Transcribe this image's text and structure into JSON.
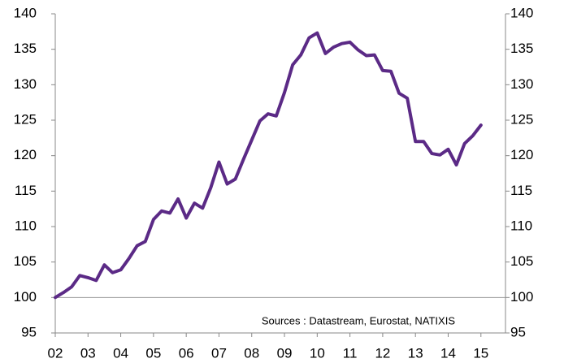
{
  "chart_data": {
    "type": "line",
    "annotation": "Sources : Datastream, Eurostat, NATIXIS",
    "x": [
      2002,
      2002.25,
      2002.5,
      2002.75,
      2003,
      2003.25,
      2003.5,
      2003.75,
      2004,
      2004.25,
      2004.5,
      2004.75,
      2005,
      2005.25,
      2005.5,
      2005.75,
      2006,
      2006.25,
      2006.5,
      2006.75,
      2007,
      2007.25,
      2007.5,
      2007.75,
      2008,
      2008.25,
      2008.5,
      2008.75,
      2009,
      2009.25,
      2009.5,
      2009.75,
      2010,
      2010.25,
      2010.5,
      2010.75,
      2011,
      2011.25,
      2011.5,
      2011.75,
      2012,
      2012.25,
      2012.5,
      2012.75,
      2013,
      2013.25,
      2013.5,
      2013.75,
      2014,
      2014.25,
      2014.5,
      2014.75,
      2015
    ],
    "series": [
      {
        "color": "#5b2a86",
        "values": [
          100,
          100.7,
          101.5,
          103.1,
          102.8,
          102.4,
          104.6,
          103.5,
          103.9,
          105.5,
          107.3,
          107.9,
          111.0,
          112.2,
          111.9,
          113.9,
          111.2,
          113.3,
          112.6,
          115.5,
          119.1,
          116.0,
          116.7,
          119.5,
          122.2,
          124.9,
          125.9,
          125.6,
          128.9,
          132.8,
          134.2,
          136.6,
          137.3,
          134.4,
          135.3,
          135.8,
          136.0,
          134.9,
          134.1,
          134.2,
          132.0,
          131.9,
          128.8,
          128.1,
          122.0,
          122.0,
          120.3,
          120.1,
          120.9,
          118.7,
          121.7,
          122.8,
          124.3
        ]
      }
    ],
    "xlim": [
      2002,
      2015.75
    ],
    "xticks": [
      {
        "value": 2002,
        "label": "02"
      },
      {
        "value": 2003,
        "label": "03"
      },
      {
        "value": 2004,
        "label": "04"
      },
      {
        "value": 2005,
        "label": "05"
      },
      {
        "value": 2006,
        "label": "06"
      },
      {
        "value": 2007,
        "label": "07"
      },
      {
        "value": 2008,
        "label": "08"
      },
      {
        "value": 2009,
        "label": "09"
      },
      {
        "value": 2010,
        "label": "10"
      },
      {
        "value": 2011,
        "label": "11"
      },
      {
        "value": 2012,
        "label": "12"
      },
      {
        "value": 2013,
        "label": "13"
      },
      {
        "value": 2014,
        "label": "14"
      },
      {
        "value": 2015,
        "label": "15"
      }
    ],
    "ylim": [
      95,
      140
    ],
    "yticks": [
      95,
      100,
      105,
      110,
      115,
      120,
      125,
      130,
      135,
      140
    ],
    "y2lim": [
      95,
      140
    ],
    "y2ticks": [
      95,
      100,
      105,
      110,
      115,
      120,
      125,
      130,
      135,
      140
    ],
    "baseline": 100
  }
}
